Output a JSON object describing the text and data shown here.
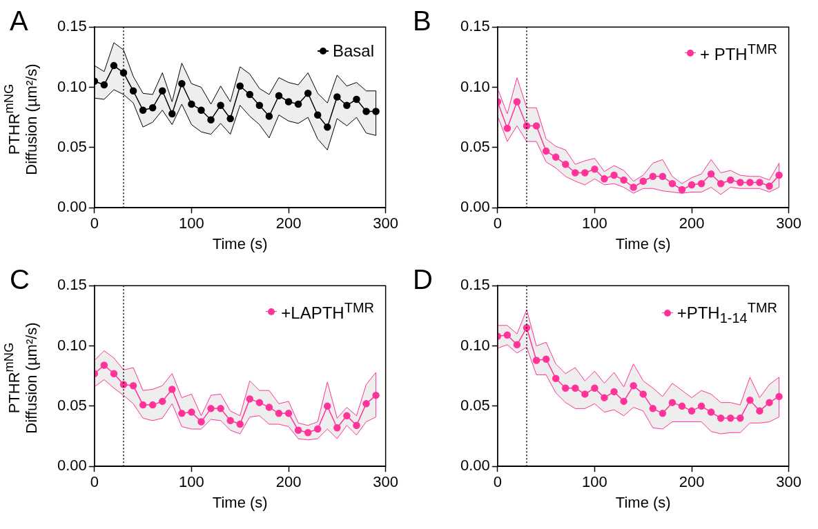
{
  "chart_data": [
    {
      "type": "line",
      "title": "A",
      "xlabel": "Time (s)",
      "ylabel": "PTHR$^{mNG}$\nDiffusion (µm²/s)",
      "x": [
        0,
        10,
        20,
        30,
        40,
        50,
        60,
        70,
        80,
        90,
        100,
        110,
        120,
        130,
        140,
        150,
        160,
        170,
        180,
        190,
        200,
        210,
        220,
        230,
        240,
        250,
        260,
        270,
        280,
        290
      ],
      "xlim": [
        0,
        300
      ],
      "xticks": [
        0,
        100,
        200,
        300
      ],
      "ylim": [
        0,
        0.15
      ],
      "yticks": [
        {
          "value": 0,
          "label": "0.00"
        },
        {
          "value": 0.05,
          "label": "0.05"
        },
        {
          "value": 0.1,
          "label": "0.10"
        },
        {
          "value": 0.15,
          "label": "0.15"
        }
      ],
      "legend": "top right",
      "marker": "circle",
      "ref_lines": [
        {
          "axis": "x",
          "value": 30,
          "color": "#000000",
          "line_style": "dotted"
        }
      ],
      "series": [
        {
          "name": "Basal",
          "color": "#000000",
          "values": [
            0.105,
            0.102,
            0.118,
            0.112,
            0.097,
            0.081,
            0.083,
            0.097,
            0.078,
            0.103,
            0.086,
            0.081,
            0.073,
            0.085,
            0.074,
            0.101,
            0.094,
            0.085,
            0.076,
            0.093,
            0.088,
            0.086,
            0.095,
            0.077,
            0.067,
            0.092,
            0.085,
            0.09,
            0.08,
            0.08
          ],
          "upper": [
            0.118,
            0.113,
            0.137,
            0.131,
            0.109,
            0.095,
            0.094,
            0.112,
            0.088,
            0.12,
            0.103,
            0.1,
            0.086,
            0.101,
            0.088,
            0.117,
            0.111,
            0.099,
            0.094,
            0.108,
            0.104,
            0.102,
            0.112,
            0.095,
            0.087,
            0.11,
            0.101,
            0.104,
            0.097,
            0.097
          ],
          "lower": [
            0.091,
            0.09,
            0.098,
            0.094,
            0.087,
            0.067,
            0.071,
            0.081,
            0.069,
            0.086,
            0.069,
            0.063,
            0.061,
            0.07,
            0.061,
            0.085,
            0.076,
            0.069,
            0.058,
            0.077,
            0.072,
            0.07,
            0.075,
            0.057,
            0.048,
            0.074,
            0.068,
            0.075,
            0.062,
            0.06
          ]
        }
      ]
    },
    {
      "type": "line",
      "title": "B",
      "xlabel": "Time (s)",
      "x": [
        0,
        10,
        20,
        30,
        40,
        50,
        60,
        70,
        80,
        90,
        100,
        110,
        120,
        130,
        140,
        150,
        160,
        170,
        180,
        190,
        200,
        210,
        220,
        230,
        240,
        250,
        260,
        270,
        280,
        290
      ],
      "xlim": [
        0,
        300
      ],
      "xticks": [
        0,
        100,
        200,
        300
      ],
      "ylim": [
        0,
        0.15
      ],
      "yticks": [
        {
          "value": 0,
          "label": "0.00"
        },
        {
          "value": 0.05,
          "label": "0.05"
        },
        {
          "value": 0.1,
          "label": "0.10"
        },
        {
          "value": 0.15,
          "label": "0.15"
        }
      ],
      "legend": "top right",
      "marker": "circle",
      "ref_lines": [
        {
          "axis": "x",
          "value": 30,
          "color": "#000000",
          "line_style": "dotted"
        }
      ],
      "series": [
        {
          "name": "+ PTH$^{TMR}$",
          "color": "#ff3399",
          "values": [
            0.088,
            0.066,
            0.088,
            0.068,
            0.068,
            0.047,
            0.042,
            0.036,
            0.029,
            0.029,
            0.032,
            0.024,
            0.027,
            0.023,
            0.017,
            0.022,
            0.026,
            0.026,
            0.02,
            0.015,
            0.019,
            0.02,
            0.028,
            0.02,
            0.023,
            0.021,
            0.021,
            0.021,
            0.018,
            0.027
          ],
          "upper": [
            0.099,
            0.078,
            0.108,
            0.083,
            0.083,
            0.057,
            0.051,
            0.048,
            0.036,
            0.039,
            0.041,
            0.03,
            0.035,
            0.031,
            0.022,
            0.027,
            0.037,
            0.04,
            0.026,
            0.02,
            0.025,
            0.028,
            0.04,
            0.029,
            0.031,
            0.027,
            0.026,
            0.026,
            0.023,
            0.037
          ],
          "lower": [
            0.076,
            0.055,
            0.068,
            0.055,
            0.055,
            0.038,
            0.033,
            0.026,
            0.022,
            0.019,
            0.024,
            0.019,
            0.02,
            0.017,
            0.012,
            0.016,
            0.016,
            0.014,
            0.013,
            0.012,
            0.013,
            0.013,
            0.017,
            0.011,
            0.017,
            0.016,
            0.016,
            0.016,
            0.013,
            0.017
          ]
        }
      ]
    },
    {
      "type": "line",
      "title": "C",
      "xlabel": "Time (s)",
      "ylabel": "PTHR$^{mNG}$\nDiffusion (µm²/s)",
      "x": [
        0,
        10,
        20,
        30,
        40,
        50,
        60,
        70,
        80,
        90,
        100,
        110,
        120,
        130,
        140,
        150,
        160,
        170,
        180,
        190,
        200,
        210,
        220,
        230,
        240,
        250,
        260,
        270,
        280,
        290
      ],
      "xlim": [
        0,
        300
      ],
      "xticks": [
        0,
        100,
        200,
        300
      ],
      "ylim": [
        0,
        0.15
      ],
      "yticks": [
        {
          "value": 0,
          "label": "0.00"
        },
        {
          "value": 0.05,
          "label": "0.05"
        },
        {
          "value": 0.1,
          "label": "0.10"
        },
        {
          "value": 0.15,
          "label": "0.15"
        }
      ],
      "legend": "top right",
      "marker": "circle",
      "ref_lines": [
        {
          "axis": "x",
          "value": 30,
          "color": "#000000",
          "line_style": "dotted"
        }
      ],
      "series": [
        {
          "name": "+LAPTH$^{TMR}$",
          "color": "#ff3399",
          "values": [
            0.077,
            0.084,
            0.077,
            0.068,
            0.067,
            0.051,
            0.051,
            0.054,
            0.064,
            0.044,
            0.045,
            0.037,
            0.048,
            0.048,
            0.038,
            0.035,
            0.056,
            0.053,
            0.049,
            0.044,
            0.044,
            0.03,
            0.028,
            0.031,
            0.05,
            0.032,
            0.042,
            0.034,
            0.052,
            0.059
          ],
          "upper": [
            0.088,
            0.096,
            0.09,
            0.08,
            0.082,
            0.063,
            0.064,
            0.067,
            0.077,
            0.057,
            0.06,
            0.042,
            0.059,
            0.06,
            0.046,
            0.042,
            0.071,
            0.063,
            0.063,
            0.052,
            0.054,
            0.036,
            0.034,
            0.037,
            0.07,
            0.04,
            0.049,
            0.042,
            0.068,
            0.078
          ],
          "lower": [
            0.066,
            0.072,
            0.065,
            0.059,
            0.052,
            0.04,
            0.038,
            0.04,
            0.052,
            0.033,
            0.031,
            0.031,
            0.039,
            0.038,
            0.03,
            0.027,
            0.041,
            0.042,
            0.035,
            0.035,
            0.033,
            0.023,
            0.022,
            0.023,
            0.031,
            0.023,
            0.034,
            0.026,
            0.037,
            0.041
          ]
        }
      ]
    },
    {
      "type": "line",
      "title": "D",
      "xlabel": "Time (s)",
      "x": [
        0,
        10,
        20,
        30,
        40,
        50,
        60,
        70,
        80,
        90,
        100,
        110,
        120,
        130,
        140,
        150,
        160,
        170,
        180,
        190,
        200,
        210,
        220,
        230,
        240,
        250,
        260,
        270,
        280,
        290
      ],
      "xlim": [
        0,
        300
      ],
      "xticks": [
        0,
        100,
        200,
        300
      ],
      "ylim": [
        0,
        0.15
      ],
      "yticks": [
        {
          "value": 0,
          "label": "0.00"
        },
        {
          "value": 0.05,
          "label": "0.05"
        },
        {
          "value": 0.1,
          "label": "0.10"
        },
        {
          "value": 0.15,
          "label": "0.15"
        }
      ],
      "legend": "top right",
      "marker": "circle",
      "ref_lines": [
        {
          "axis": "x",
          "value": 30,
          "color": "#000000",
          "line_style": "dotted"
        }
      ],
      "series": [
        {
          "name": "+PTH$_{1-14}$$^{TMR}$",
          "color": "#ff3399",
          "values": [
            0.108,
            0.109,
            0.101,
            0.115,
            0.088,
            0.089,
            0.073,
            0.065,
            0.065,
            0.06,
            0.065,
            0.057,
            0.062,
            0.054,
            0.067,
            0.06,
            0.048,
            0.044,
            0.053,
            0.05,
            0.046,
            0.05,
            0.045,
            0.04,
            0.04,
            0.04,
            0.055,
            0.046,
            0.053,
            0.058
          ],
          "upper": [
            0.117,
            0.117,
            0.11,
            0.13,
            0.1,
            0.103,
            0.085,
            0.077,
            0.082,
            0.071,
            0.079,
            0.069,
            0.078,
            0.066,
            0.085,
            0.071,
            0.065,
            0.058,
            0.069,
            0.063,
            0.057,
            0.063,
            0.06,
            0.053,
            0.053,
            0.051,
            0.074,
            0.057,
            0.068,
            0.074
          ],
          "lower": [
            0.098,
            0.101,
            0.094,
            0.099,
            0.076,
            0.076,
            0.061,
            0.053,
            0.048,
            0.048,
            0.052,
            0.045,
            0.047,
            0.042,
            0.049,
            0.046,
            0.032,
            0.031,
            0.037,
            0.037,
            0.037,
            0.037,
            0.029,
            0.027,
            0.028,
            0.028,
            0.036,
            0.036,
            0.037,
            0.041
          ]
        }
      ]
    }
  ]
}
